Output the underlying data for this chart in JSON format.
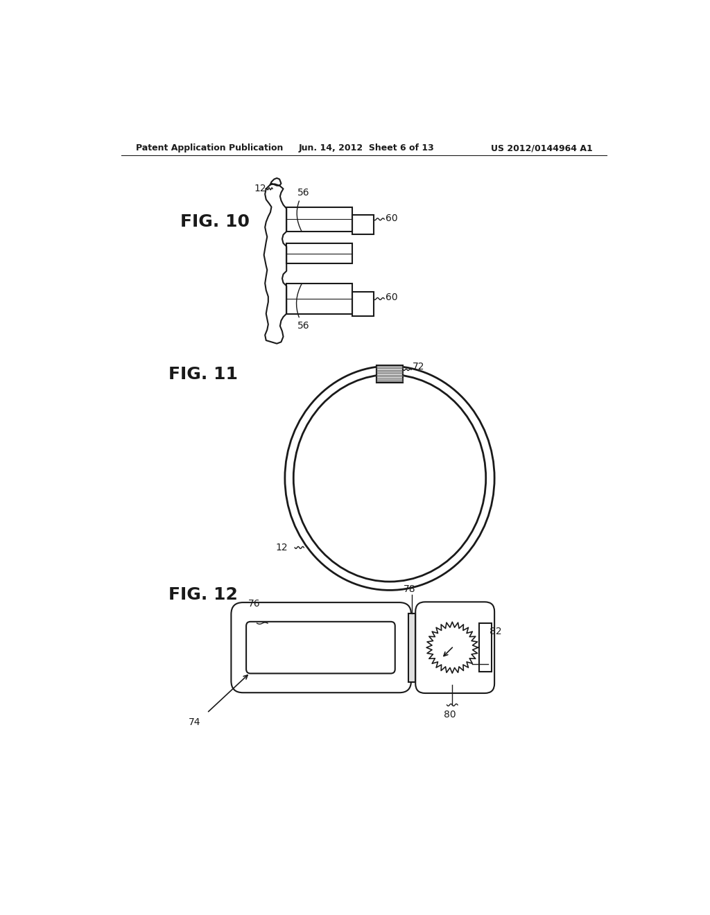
{
  "bg_color": "#ffffff",
  "line_color": "#1a1a1a",
  "header_text_left": "Patent Application Publication",
  "header_text_mid": "Jun. 14, 2012  Sheet 6 of 13",
  "header_text_right": "US 2012/0144964 A1",
  "fig10_label": "FIG. 10",
  "fig11_label": "FIG. 11",
  "fig12_label": "FIG. 12"
}
